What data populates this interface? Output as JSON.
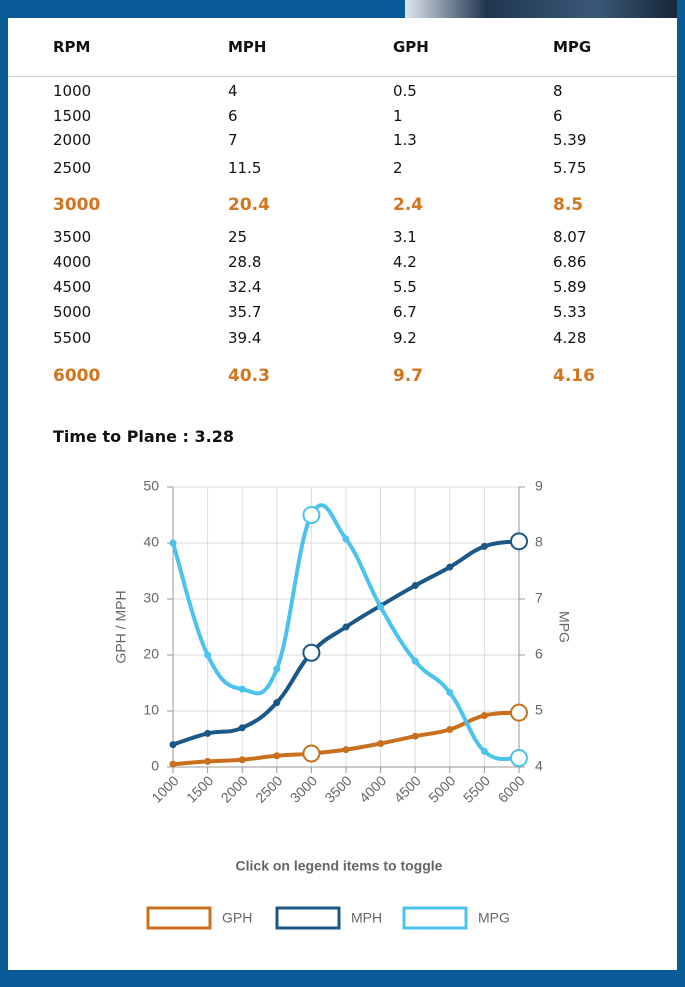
{
  "table": {
    "header": [
      "RPM",
      "MPH",
      "GPH",
      "MPG"
    ],
    "rows": [
      [
        "1000",
        "4",
        "0.5",
        "8"
      ],
      [
        "1500",
        "6",
        "1",
        "6"
      ],
      [
        "2000",
        "7",
        "1.3",
        "5.39"
      ],
      [
        "2500",
        "11.5",
        "2",
        "5.75"
      ],
      [
        "3000",
        "20.4",
        "2.4",
        "8.5"
      ],
      [
        "3500",
        "25",
        "3.1",
        "8.07"
      ],
      [
        "4000",
        "28.8",
        "4.2",
        "6.86"
      ],
      [
        "4500",
        "32.4",
        "5.5",
        "5.89"
      ],
      [
        "5000",
        "35.7",
        "6.7",
        "5.33"
      ],
      [
        "5500",
        "39.4",
        "9.2",
        "4.28"
      ],
      [
        "6000",
        "40.3",
        "9.7",
        "4.16"
      ]
    ],
    "highlight_rows": [
      4,
      10
    ]
  },
  "heading": "Time to Plane : 3.28",
  "chart_data": {
    "type": "line",
    "categories": [
      "1000",
      "1500",
      "2000",
      "2500",
      "3000",
      "3500",
      "4000",
      "4500",
      "5000",
      "5500",
      "6000"
    ],
    "series": [
      {
        "name": "GPH",
        "color": "#c8701e",
        "values": [
          0.5,
          1,
          1.3,
          2,
          2.4,
          3.1,
          4.2,
          5.5,
          6.7,
          9.2,
          9.7
        ]
      },
      {
        "name": "MPH",
        "color": "#1b5787",
        "values": [
          4,
          6,
          7,
          11.5,
          20.4,
          25,
          28.8,
          32.4,
          35.7,
          39.4,
          40.3
        ]
      },
      {
        "name": "MPG",
        "color": "#4cc3ec",
        "axis": "y2",
        "values": [
          8,
          6,
          5.39,
          5.75,
          8.5,
          8.07,
          6.86,
          5.89,
          5.33,
          4.28,
          4.16
        ]
      }
    ],
    "highlight_points": [
      4,
      10
    ],
    "ylabel": "GPH / MPH",
    "y2label": "MPG",
    "ylim": [
      0,
      50
    ],
    "yticks": [
      0,
      10,
      20,
      30,
      40,
      50
    ],
    "y2lim": [
      4,
      9
    ],
    "y2ticks": [
      4,
      5,
      6,
      7,
      8,
      9
    ],
    "grid": true,
    "note": "Click on legend items to toggle"
  }
}
